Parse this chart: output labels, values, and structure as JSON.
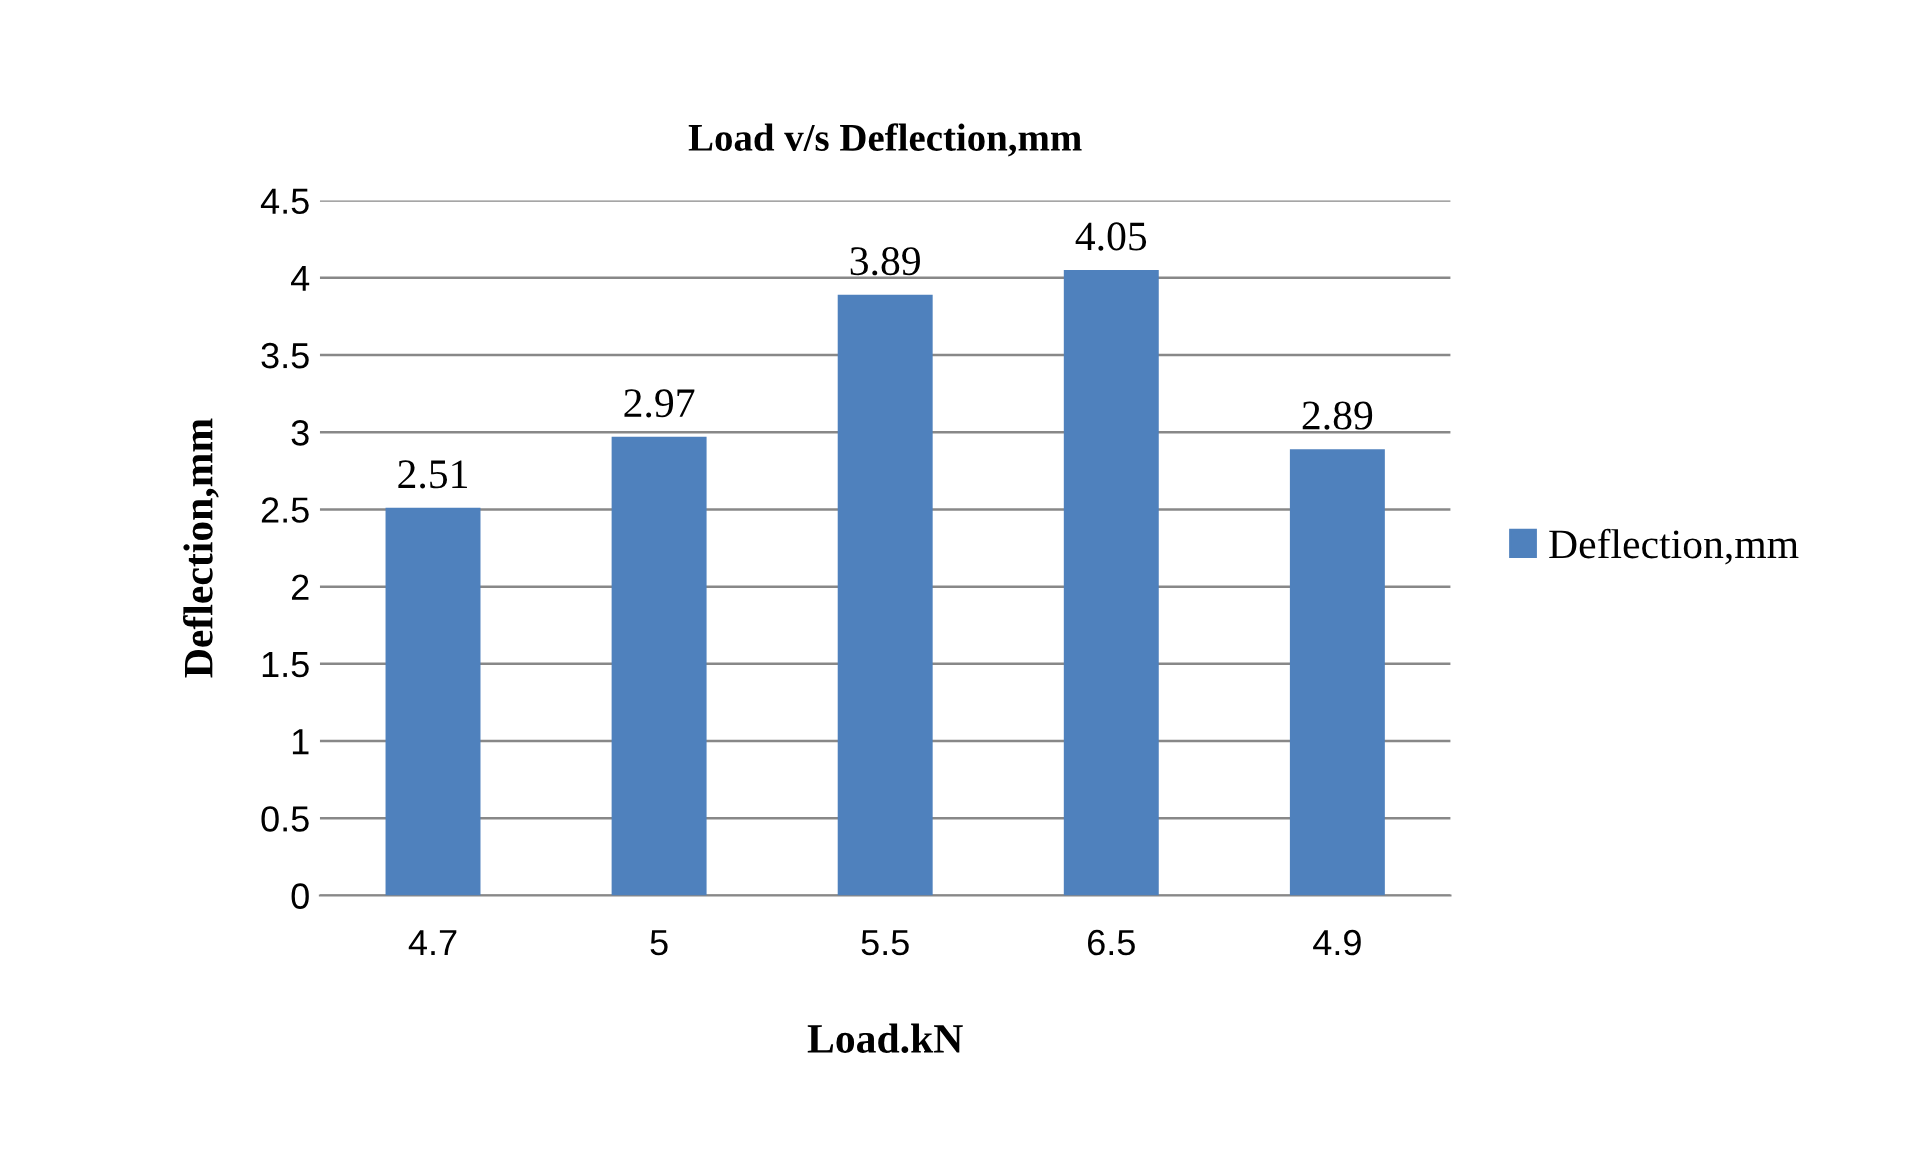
{
  "chart_data": {
    "type": "bar",
    "title": "Load v/s Deflection,mm",
    "xlabel": "Load.kN",
    "ylabel": "Deflection,mm",
    "categories": [
      "4.7",
      "5",
      "5.5",
      "6.5",
      "4.9"
    ],
    "series": [
      {
        "name": "Deflection,mm",
        "color": "#4f81bd",
        "values": [
          2.51,
          2.97,
          3.89,
          4.05,
          2.89
        ]
      }
    ],
    "ylim": [
      0,
      4.5
    ],
    "yticks": [
      0,
      0.5,
      1,
      1.5,
      2,
      2.5,
      3,
      3.5,
      4,
      4.5
    ],
    "grid": "y",
    "legend": "right",
    "data_labels": true
  }
}
